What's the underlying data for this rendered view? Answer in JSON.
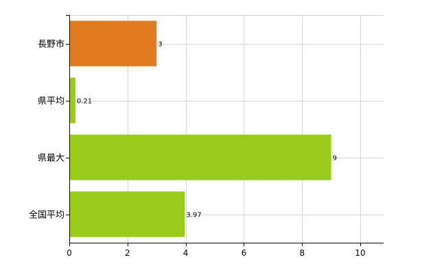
{
  "chart_data": {
    "type": "bar",
    "orientation": "horizontal",
    "categories": [
      "長野市",
      "県平均",
      "県最大",
      "全国平均"
    ],
    "values": [
      3,
      0.21,
      9,
      3.97
    ],
    "data_labels": [
      "3",
      "0.21",
      "9",
      "3.97"
    ],
    "bar_colors": [
      "#e07b1f",
      "#99cc1a",
      "#99cc1a",
      "#99cc1a"
    ],
    "xlim": [
      0,
      10.8
    ],
    "x_ticks": [
      0,
      2,
      4,
      6,
      8,
      10
    ],
    "x_tick_labels": [
      "0",
      "2",
      "4",
      "6",
      "8",
      "10"
    ],
    "grid": true,
    "legend": "none",
    "title": "",
    "xlabel": "",
    "ylabel": ""
  }
}
